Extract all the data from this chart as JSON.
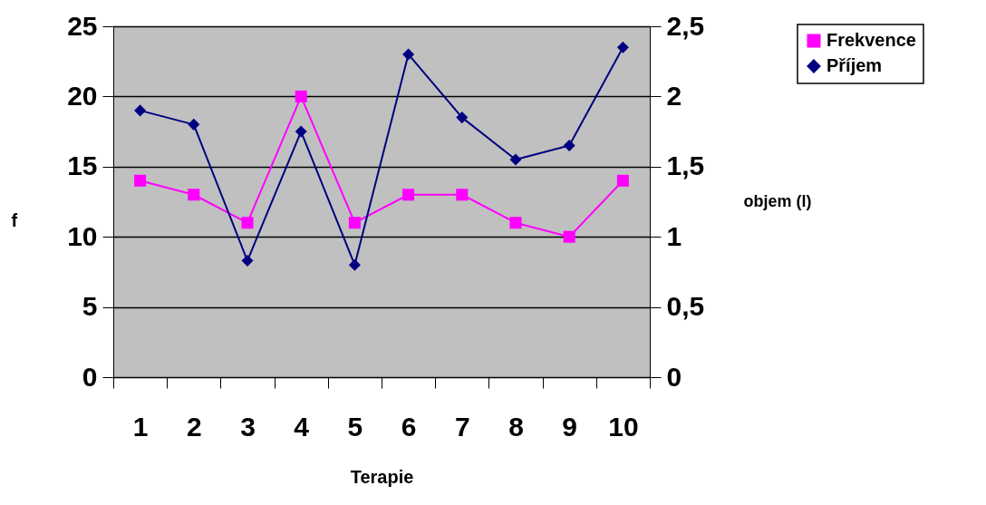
{
  "chart_data": {
    "type": "line",
    "xlabel": "Terapie",
    "ylabel": "f",
    "y2label": "objem (l)",
    "categories": [
      "1",
      "2",
      "3",
      "4",
      "5",
      "6",
      "7",
      "8",
      "9",
      "10"
    ],
    "series": [
      {
        "name": "Frekvence",
        "color": "#ff00ff",
        "marker": "square",
        "values": [
          14,
          13,
          11,
          20,
          11,
          13,
          13,
          11,
          10,
          14
        ]
      },
      {
        "name": "Příjem",
        "color": "#000080",
        "marker": "diamond",
        "axis": "y2",
        "values": [
          1.9,
          1.8,
          0.83,
          1.75,
          0.8,
          2.3,
          1.85,
          1.55,
          1.65,
          2.35
        ]
      }
    ],
    "ylim": [
      0,
      25
    ],
    "yticks": [
      0,
      5,
      10,
      15,
      20,
      25
    ],
    "y2lim": [
      0,
      2.5
    ],
    "y2ticks": [
      0,
      {
        "value": 0.5,
        "label": "0,5"
      },
      1,
      {
        "value": 1.5,
        "label": "1,5"
      },
      2,
      {
        "value": 2.5,
        "label": "2,5"
      }
    ],
    "grid": "y",
    "legend": "top right"
  }
}
